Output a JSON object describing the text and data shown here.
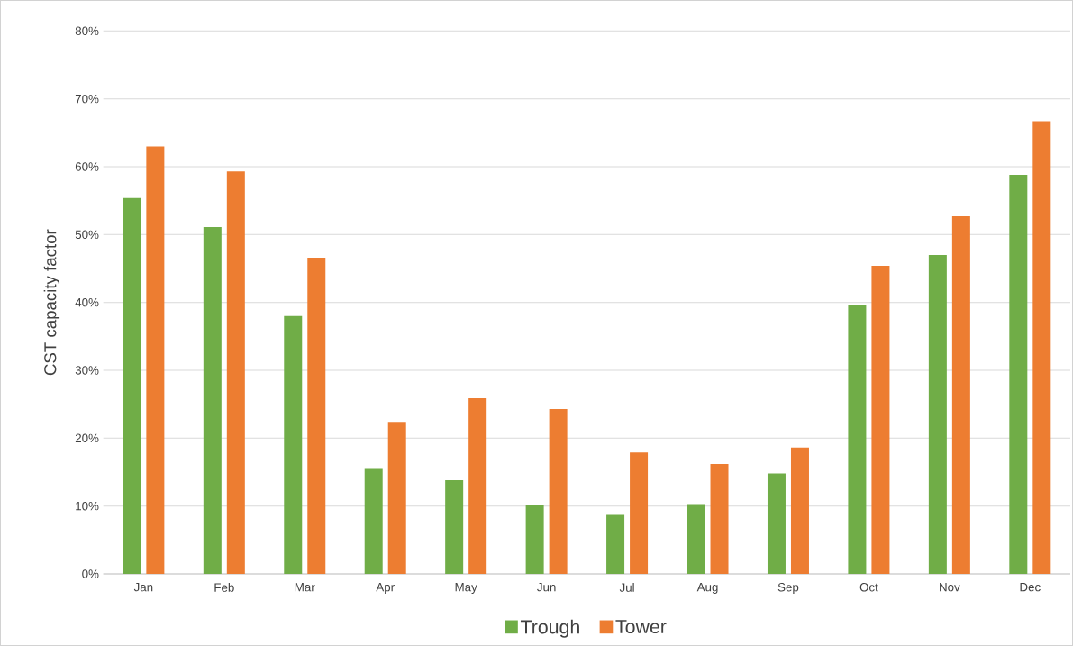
{
  "chart_data": {
    "type": "bar",
    "ylabel": "CST capacity factor",
    "categories": [
      "Jan",
      "Feb",
      "Mar",
      "Apr",
      "May",
      "Jun",
      "Jul",
      "Aug",
      "Sep",
      "Oct",
      "Nov",
      "Dec"
    ],
    "series": [
      {
        "name": "Trough",
        "color": "#70ad47",
        "values": [
          55.4,
          51.1,
          38.0,
          15.6,
          13.8,
          10.2,
          8.7,
          10.3,
          14.8,
          39.6,
          47.0,
          58.8
        ]
      },
      {
        "name": "Tower",
        "color": "#ed7d31",
        "values": [
          63.0,
          59.3,
          46.6,
          22.4,
          25.9,
          24.3,
          17.9,
          16.2,
          18.6,
          45.4,
          52.7,
          66.7
        ]
      }
    ],
    "ylim": [
      0,
      80
    ],
    "yticks": [
      {
        "value": 0,
        "label": "0%"
      },
      {
        "value": 10,
        "label": "10%"
      },
      {
        "value": 20,
        "label": "20%"
      },
      {
        "value": 30,
        "label": "30%"
      },
      {
        "value": 40,
        "label": "40%"
      },
      {
        "value": 50,
        "label": "50%"
      },
      {
        "value": 60,
        "label": "60%"
      },
      {
        "value": 70,
        "label": "70%"
      },
      {
        "value": 80,
        "label": "80%"
      }
    ],
    "grid": "y",
    "legend": "bottom"
  }
}
